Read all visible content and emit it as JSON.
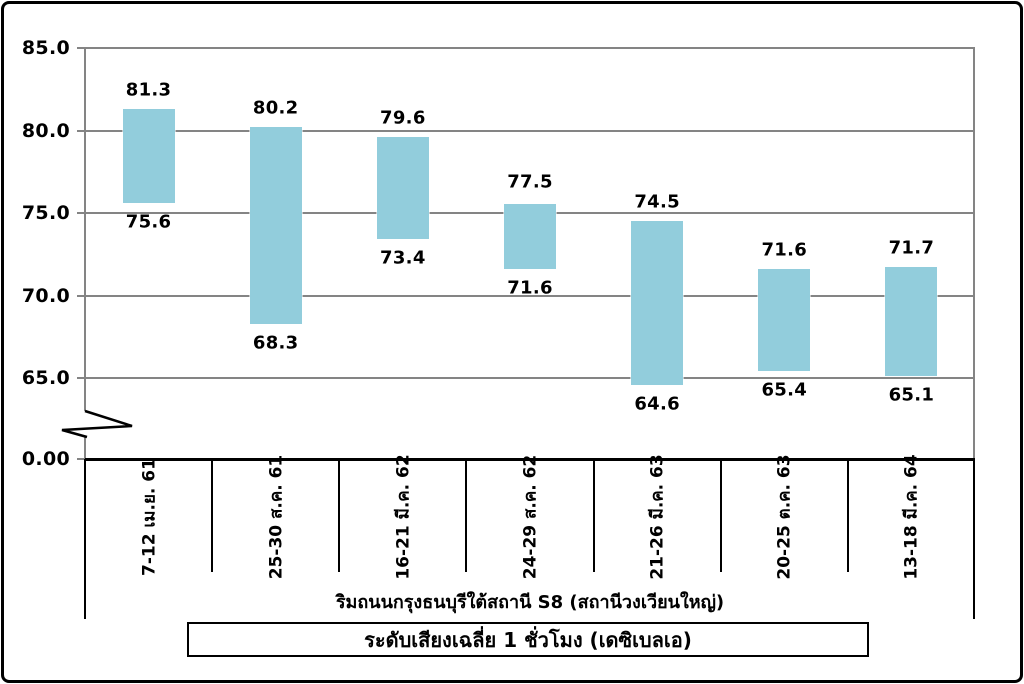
{
  "chart_data": {
    "type": "bar",
    "subtype": "floating-range-columns",
    "title": "",
    "x_axis_title": "ริมถนนกรุงธนบุรีใต้สถานี S8 (สถานีวงเวียนใหญ่)",
    "legend_label": "ระดับเสียงเฉลี่ย 1 ชั่วโมง (เดซิเบลเอ)",
    "ylabel": "",
    "y_axis_break": true,
    "y_upper_segment_range": [
      65,
      85
    ],
    "grid": true,
    "legend_position": "bottom-box",
    "bar_color": "#92CDDC",
    "gridline_color": "#848484",
    "axis_color": "#000000",
    "y_ticks": [
      {
        "label": "85.0",
        "value": 85
      },
      {
        "label": "80.0",
        "value": 80
      },
      {
        "label": "75.0",
        "value": 75
      },
      {
        "label": "70.0",
        "value": 70
      },
      {
        "label": "65.0",
        "value": 65
      },
      {
        "label": "0.00",
        "value": 0
      }
    ],
    "categories": [
      "7-12 เม.ย. 61",
      "25-30 ส.ค. 61",
      "16-21 มี.ค. 62",
      "24-29 ส.ค. 62",
      "21-26 มี.ค. 63",
      "20-25 ต.ค. 63",
      "13-18 มี.ค. 64"
    ],
    "points": [
      {
        "category": "7-12 เม.ย. 61",
        "max": 81.3,
        "min": 75.6
      },
      {
        "category": "25-30 ส.ค. 61",
        "max": 80.2,
        "min": 68.3
      },
      {
        "category": "16-21 มี.ค. 62",
        "max": 79.6,
        "min": 73.4
      },
      {
        "category": "24-29 ส.ค. 62",
        "max": 77.5,
        "min": 71.6,
        "label_masks_bar_top": true
      },
      {
        "category": "21-26 มี.ค. 63",
        "max": 74.5,
        "min": 64.6
      },
      {
        "category": "20-25 ต.ค. 63",
        "max": 71.6,
        "min": 65.4
      },
      {
        "category": "13-18 มี.ค. 64",
        "max": 71.7,
        "min": 65.1
      }
    ]
  }
}
